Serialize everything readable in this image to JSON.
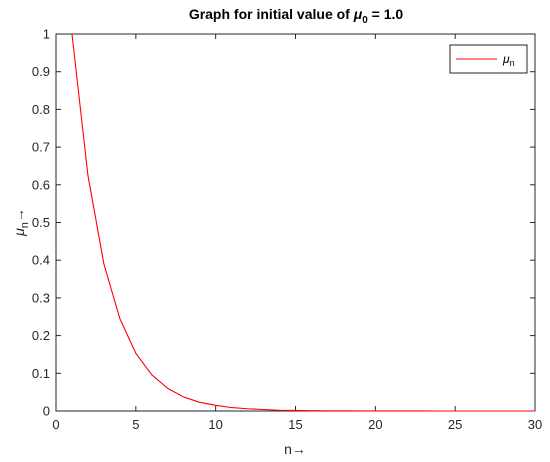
{
  "chart_data": {
    "type": "line",
    "title_prefix": "Graph for initial value of ",
    "title_symbol": "μ",
    "title_subscript": "0",
    "title_suffix": " = 1.0",
    "xlabel": "n→",
    "ylabel_symbol": "μ",
    "ylabel_subscript": "n",
    "ylabel_arrow": "→",
    "xlim": [
      0,
      30
    ],
    "ylim": [
      0,
      1
    ],
    "xticks": [
      "0",
      "5",
      "10",
      "15",
      "20",
      "25",
      "30"
    ],
    "yticks": [
      "0",
      "0.1",
      "0.2",
      "0.3",
      "0.4",
      "0.5",
      "0.6",
      "0.7",
      "0.8",
      "0.9",
      "1"
    ],
    "grid": false,
    "legend_position": "top-right",
    "series": [
      {
        "name_symbol": "μ",
        "name_subscript": "n",
        "color": "#ff0000",
        "x": [
          1,
          2,
          3,
          4,
          5,
          6,
          7,
          8,
          9,
          10,
          11,
          12,
          13,
          14,
          15,
          16,
          17,
          18,
          19,
          20,
          21,
          22,
          23,
          24,
          25,
          26,
          27,
          28,
          29,
          30
        ],
        "y": [
          1.0,
          0.625,
          0.39,
          0.245,
          0.153,
          0.096,
          0.06,
          0.037,
          0.023,
          0.015,
          0.009,
          0.006,
          0.004,
          0.002,
          0.0015,
          0.0009,
          0.0006,
          0.0004,
          0.0002,
          0.00015,
          0.0001,
          6e-05,
          4e-05,
          2e-05,
          1e-05,
          1e-05,
          0.0,
          0.0,
          0.0,
          0.0
        ]
      }
    ]
  }
}
